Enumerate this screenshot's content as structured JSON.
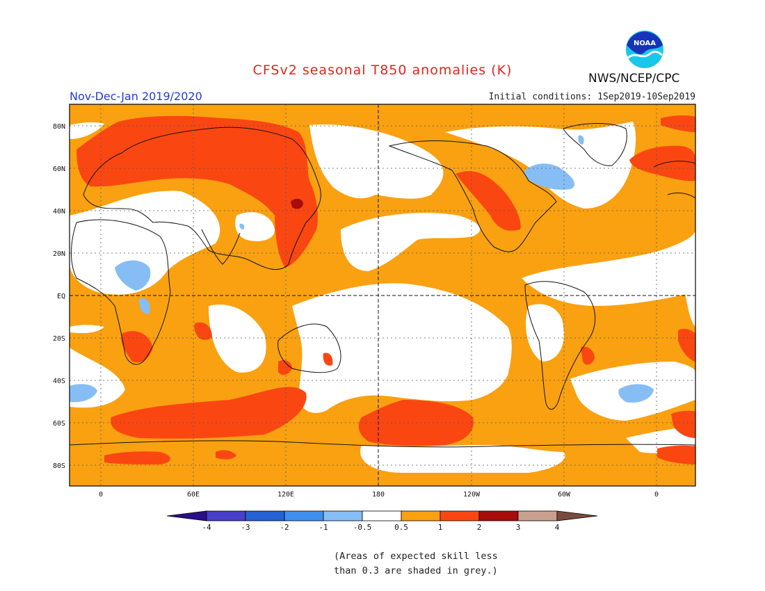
{
  "header": {
    "title": "CFSv2 seasonal T850 anomalies (K)",
    "period": "Nov-Dec-Jan 2019/2020",
    "initial_conditions": "Initial conditions: 1Sep2019-10Sep2019",
    "agency": "NWS/NCEP/CPC",
    "logo_text": "NOAA"
  },
  "axes": {
    "lat_labels": [
      "80N",
      "60N",
      "40N",
      "20N",
      "EQ",
      "20S",
      "40S",
      "60S",
      "80S"
    ],
    "lon_labels": [
      "0",
      "60E",
      "120E",
      "180",
      "120W",
      "60W",
      "0"
    ]
  },
  "colorbar": {
    "labels": [
      "-4",
      "-3",
      "-2",
      "-1",
      "-0.5",
      "0.5",
      "1",
      "2",
      "3",
      "4"
    ],
    "colors": [
      "#2b0f8a",
      "#4840c8",
      "#2462d6",
      "#3f8ff0",
      "#86bdf5",
      "#ffffff",
      "#f9a111",
      "#fa4712",
      "#a60d0d",
      "#c9a08f",
      "#7b4a3e"
    ]
  },
  "note": {
    "line1": "(Areas of expected skill less",
    "line2": "than 0.3 are shaded in grey.)"
  },
  "palette": {
    "orange": "#f9a111",
    "red": "#fa4712",
    "darkred": "#a60d0d",
    "lightblue": "#86bdf5"
  }
}
